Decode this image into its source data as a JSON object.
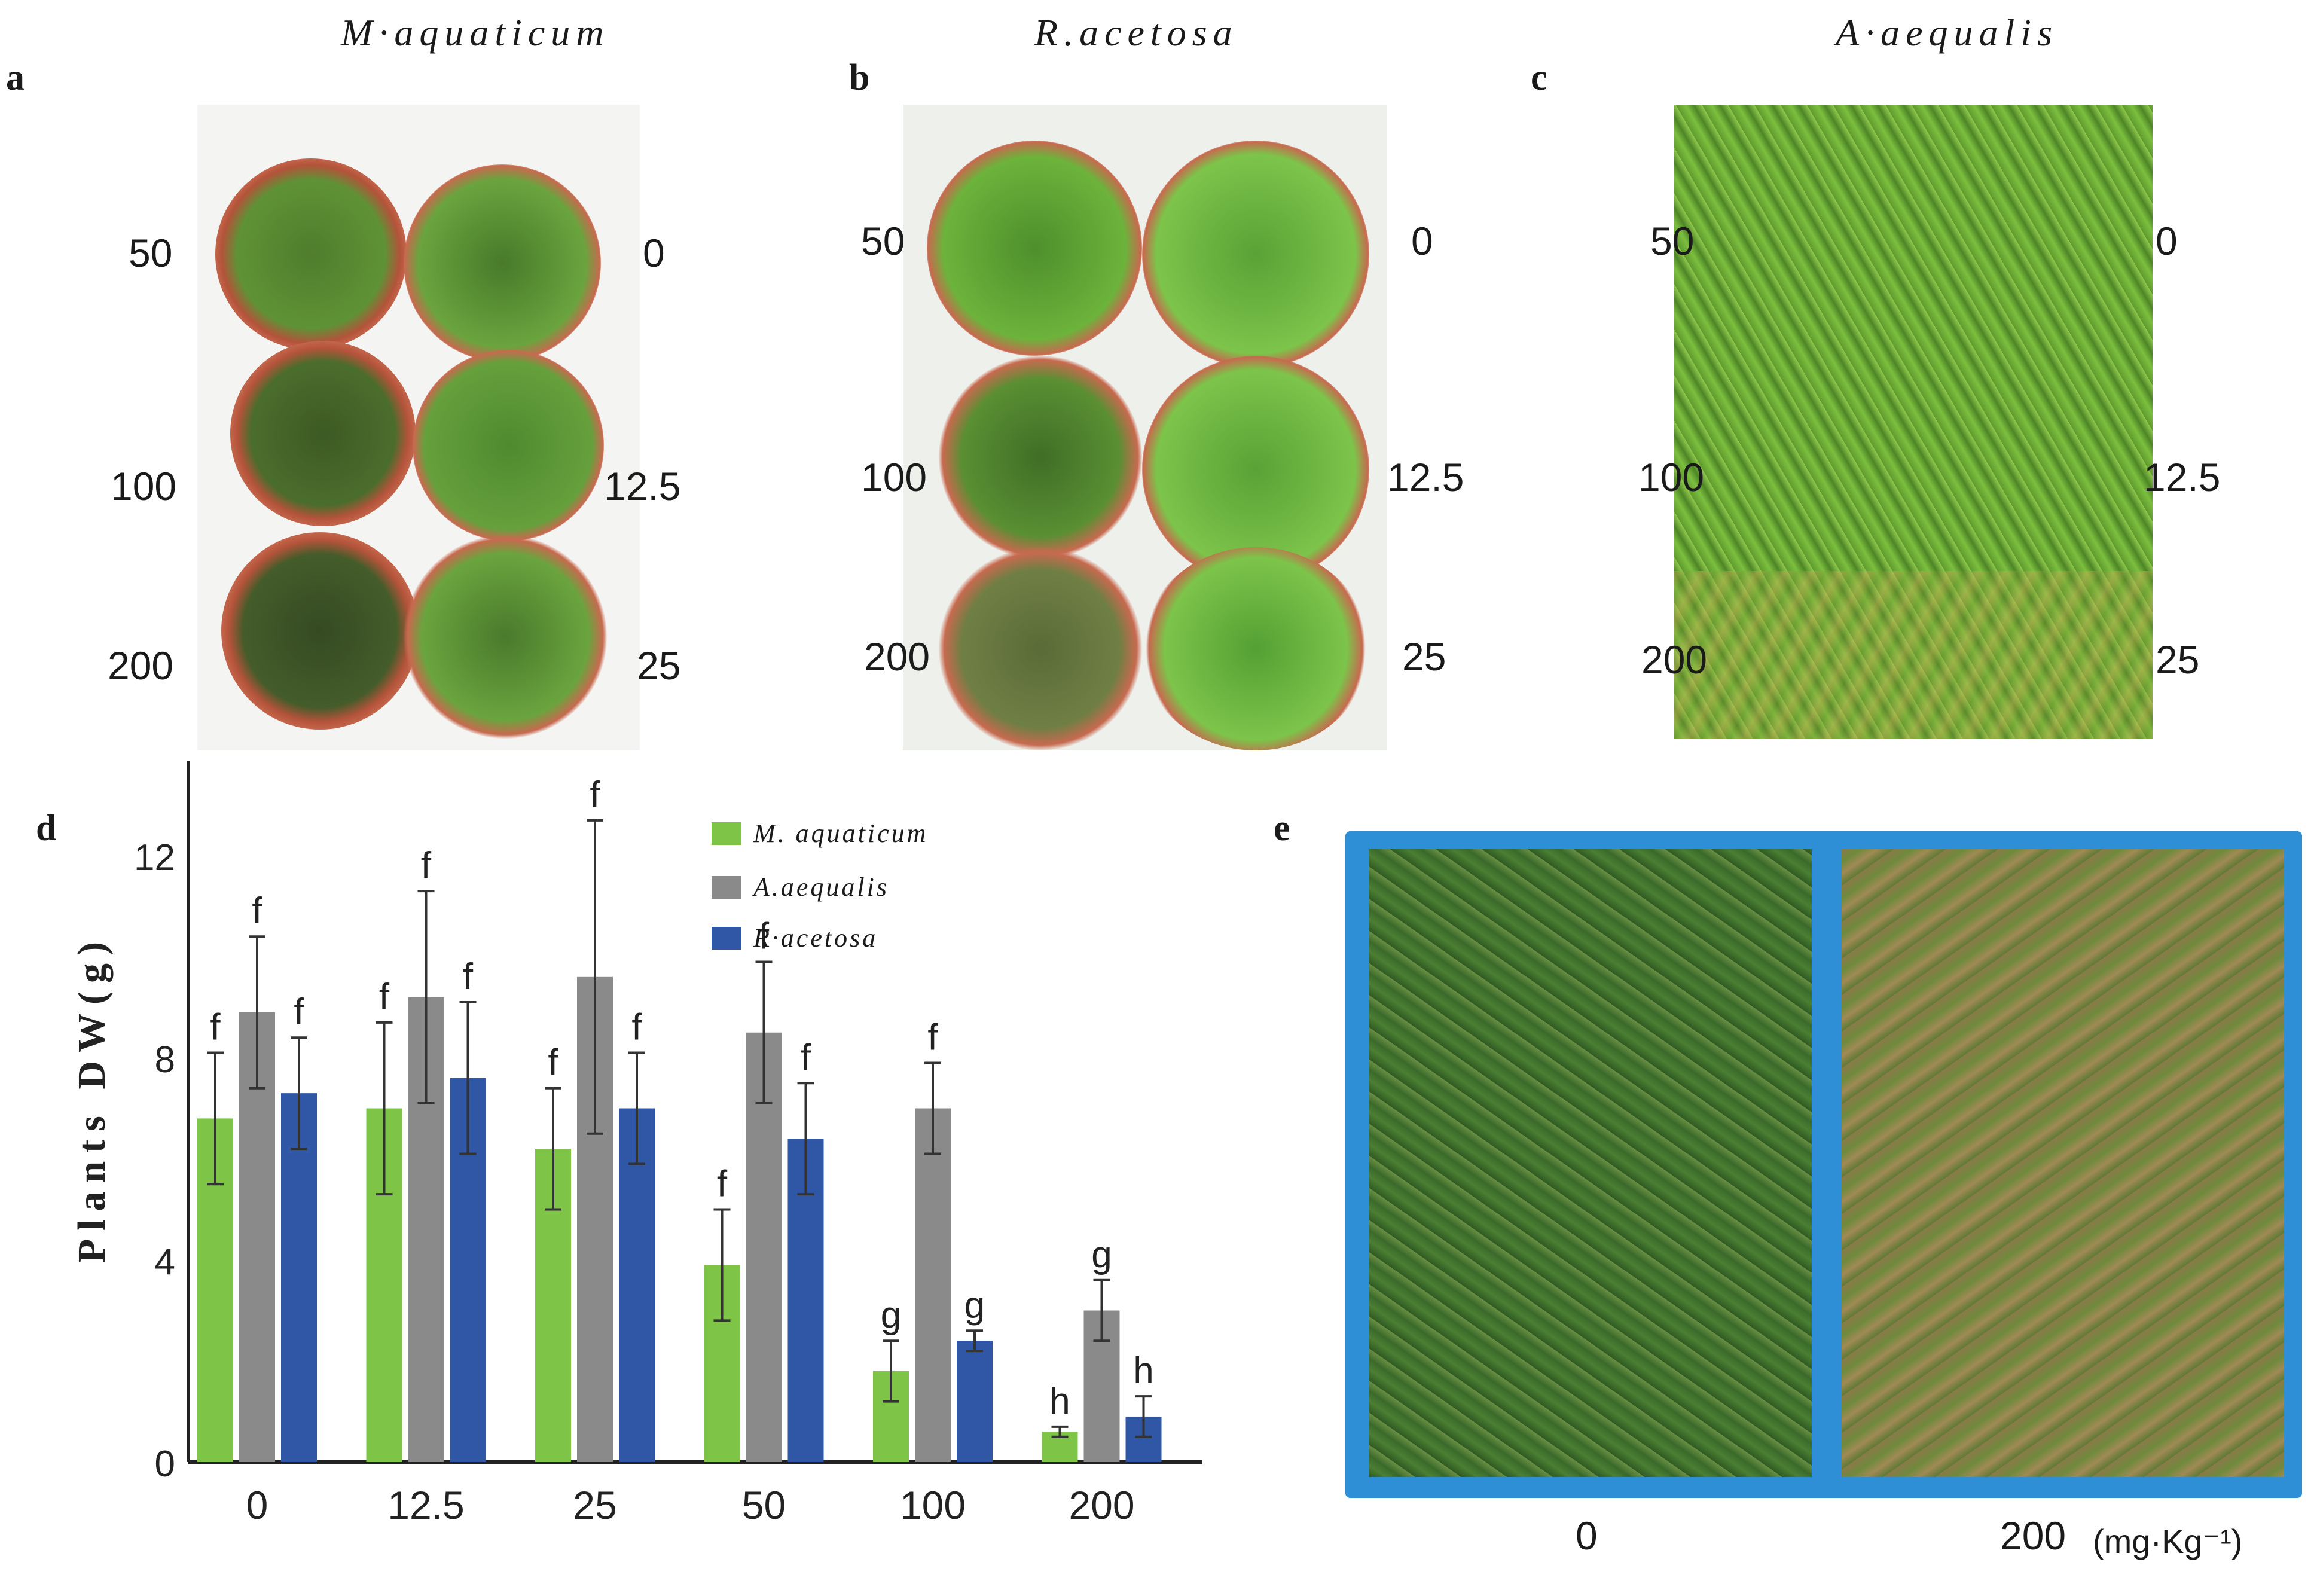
{
  "panels": {
    "a": {
      "letter": "a",
      "species": "M·aquaticum",
      "labels_left": [
        "50",
        "100",
        "200"
      ],
      "labels_right": [
        "0",
        "12.5",
        "25"
      ]
    },
    "b": {
      "letter": "b",
      "species": "R.acetosa",
      "labels_left": [
        "50",
        "100",
        "200"
      ],
      "labels_right": [
        "0",
        "12.5",
        "25"
      ]
    },
    "c": {
      "letter": "c",
      "species": "A·aequalis",
      "labels_left": [
        "50",
        "100",
        "200"
      ],
      "labels_right": [
        "0",
        "12.5",
        "25"
      ]
    },
    "d": {
      "letter": "d"
    },
    "e": {
      "letter": "e",
      "tray_labels": [
        "0",
        "200"
      ],
      "unit": "(mg·Kg⁻¹)"
    }
  },
  "colors": {
    "m_aquaticum": "#7dc447",
    "a_aequalis": "#8a8a8a",
    "r_acetosa": "#2f57a6"
  },
  "chart_data": {
    "type": "bar",
    "categories": [
      "0",
      "12.5",
      "25",
      "50",
      "100",
      "200"
    ],
    "ylabel": "Plants DW(g)",
    "ylim": [
      0,
      14
    ],
    "yticks": [
      "0",
      "4",
      "8",
      "12"
    ],
    "ytick_values": [
      0,
      4,
      8,
      12
    ],
    "grid": false,
    "legend_position": "top-center",
    "series": [
      {
        "name": "M. aquaticum",
        "values": [
          6.8,
          7.0,
          6.2,
          3.9,
          1.8,
          0.6
        ],
        "errors": [
          1.3,
          1.7,
          1.2,
          1.1,
          0.6,
          0.1
        ],
        "letters": [
          "f",
          "f",
          "f",
          "f",
          "g",
          "h"
        ]
      },
      {
        "name": "A.aequalis",
        "values": [
          8.9,
          9.2,
          9.6,
          8.5,
          7.0,
          3.0
        ],
        "errors": [
          1.5,
          2.1,
          3.1,
          1.4,
          0.9,
          0.6
        ],
        "letters": [
          "f",
          "f",
          "f",
          "f",
          "f",
          "g"
        ]
      },
      {
        "name": "R·acetosa",
        "values": [
          7.3,
          7.6,
          7.0,
          6.4,
          2.4,
          0.9
        ],
        "errors": [
          1.1,
          1.5,
          1.1,
          1.1,
          0.2,
          0.4
        ],
        "letters": [
          "f",
          "f",
          "f",
          "f",
          "g",
          "h"
        ]
      }
    ]
  }
}
